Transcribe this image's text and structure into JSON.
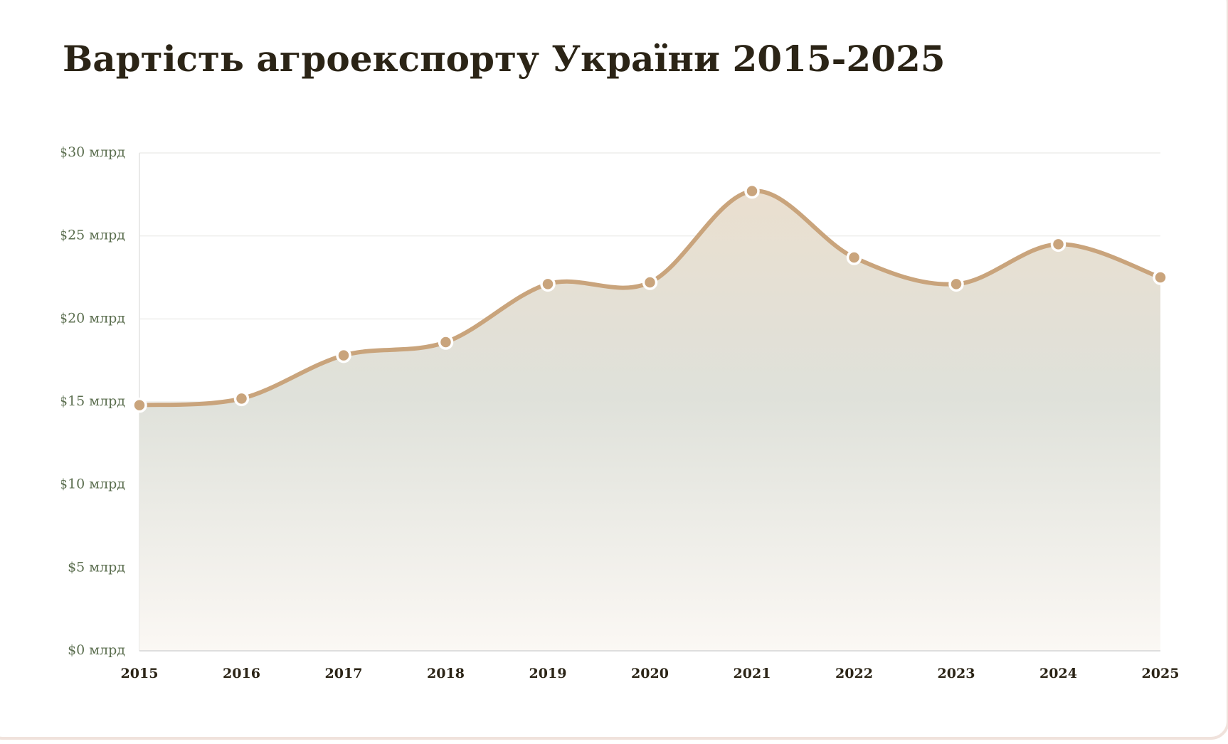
{
  "chart_data": {
    "type": "line",
    "title": "Вартість агроекспорту України 2015-2025",
    "categories": [
      "2015",
      "2016",
      "2017",
      "2018",
      "2019",
      "2020",
      "2021",
      "2022",
      "2023",
      "2024",
      "2025"
    ],
    "series": [
      {
        "color": "#c9a47c",
        "values": [
          14.8,
          15.2,
          17.8,
          18.6,
          22.1,
          22.2,
          27.7,
          23.7,
          22.1,
          24.5,
          22.5
        ]
      }
    ],
    "ylim": [
      0,
      30
    ],
    "yticks": [
      {
        "value": 0,
        "label": "$0 млрд"
      },
      {
        "value": 5,
        "label": "$5 млрд"
      },
      {
        "value": 10,
        "label": "$10 млрд"
      },
      {
        "value": 15,
        "label": "$15 млрд"
      },
      {
        "value": 20,
        "label": "$20 млрд"
      },
      {
        "value": 25,
        "label": "$25 млрд"
      },
      {
        "value": 30,
        "label": "$30 млрд"
      }
    ],
    "grid": true
  }
}
